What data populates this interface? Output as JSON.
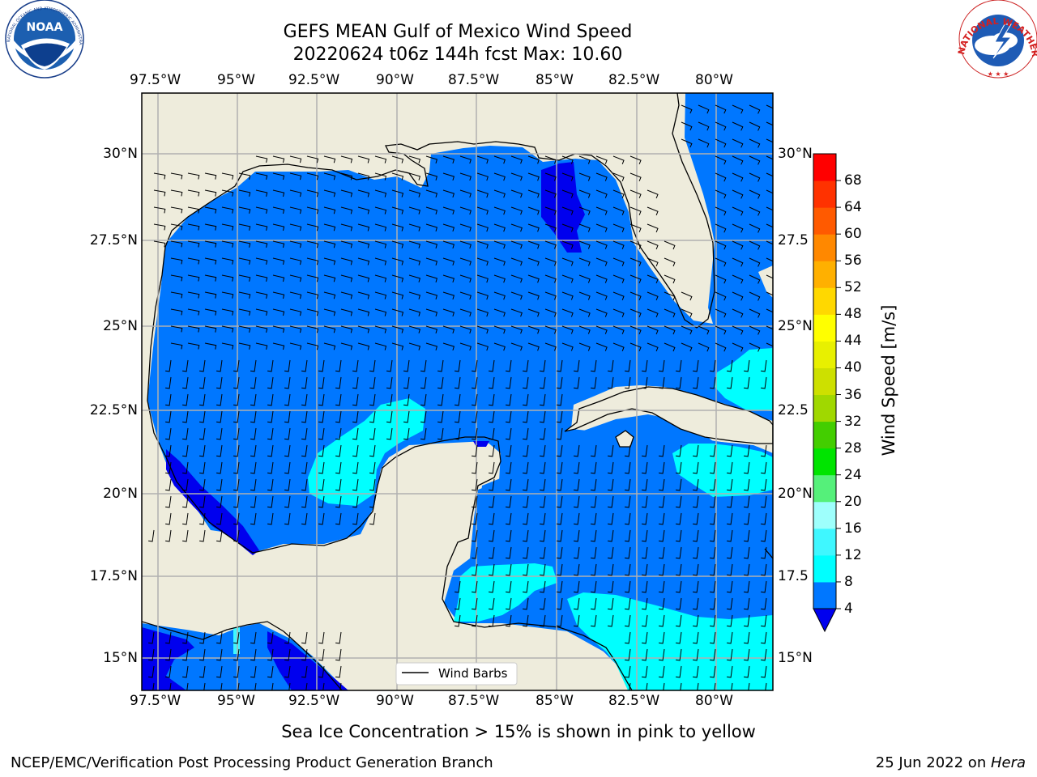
{
  "title": {
    "line1": "GEFS MEAN Gulf of Mexico Wind Speed",
    "line2": "20220624 t06z 144h fcst   Max: 10.60"
  },
  "logos": {
    "left": {
      "text": "NOAA",
      "ring_text": "NATIONAL OCEANIC AND ATMOSPHERIC ADMINISTRATION · U.S. DEPARTMENT OF COMMERCE"
    },
    "right": {
      "ring_text": "NATIONAL WEATHER SERVICE"
    }
  },
  "map": {
    "lon_labels": [
      "97.5°W",
      "95°W",
      "92.5°W",
      "90°W",
      "87.5°W",
      "85°W",
      "82.5°W",
      "80°W"
    ],
    "lat_labels": [
      "30°N",
      "27.5°N",
      "25°N",
      "22.5°N",
      "20°N",
      "17.5°N",
      "15°N"
    ],
    "right_lat_labels": [
      "30°N",
      "27.5",
      "25°N",
      "22.5",
      "20°N",
      "17.5",
      "15°N"
    ],
    "legend_label": "Wind Barbs",
    "land_color": "#eeecdc",
    "gridline_color": "#b0b0b0"
  },
  "colorbar": {
    "label": "Wind Speed [m/s]",
    "ticks": [
      "4",
      "8",
      "12",
      "16",
      "20",
      "24",
      "28",
      "32",
      "36",
      "40",
      "44",
      "48",
      "52",
      "56",
      "60",
      "64",
      "68"
    ],
    "colors": [
      "#0077ff",
      "#00ffff",
      "#3ff7ff",
      "#9efffc",
      "#55f07a",
      "#00e400",
      "#43ce00",
      "#a0d800",
      "#cde000",
      "#e8f000",
      "#ffff00",
      "#ffd800",
      "#ffb000",
      "#ff8800",
      "#ff5a00",
      "#ff3200",
      "#ff0000"
    ],
    "under_color": "#0000ee"
  },
  "footer": {
    "note": "Sea Ice Concentration > 15% is shown in pink to yellow",
    "credit": "NCEP/EMC/Verification Post Processing Product Generation Branch",
    "date": "25 Jun 2022 on ",
    "machine": "Hera"
  }
}
